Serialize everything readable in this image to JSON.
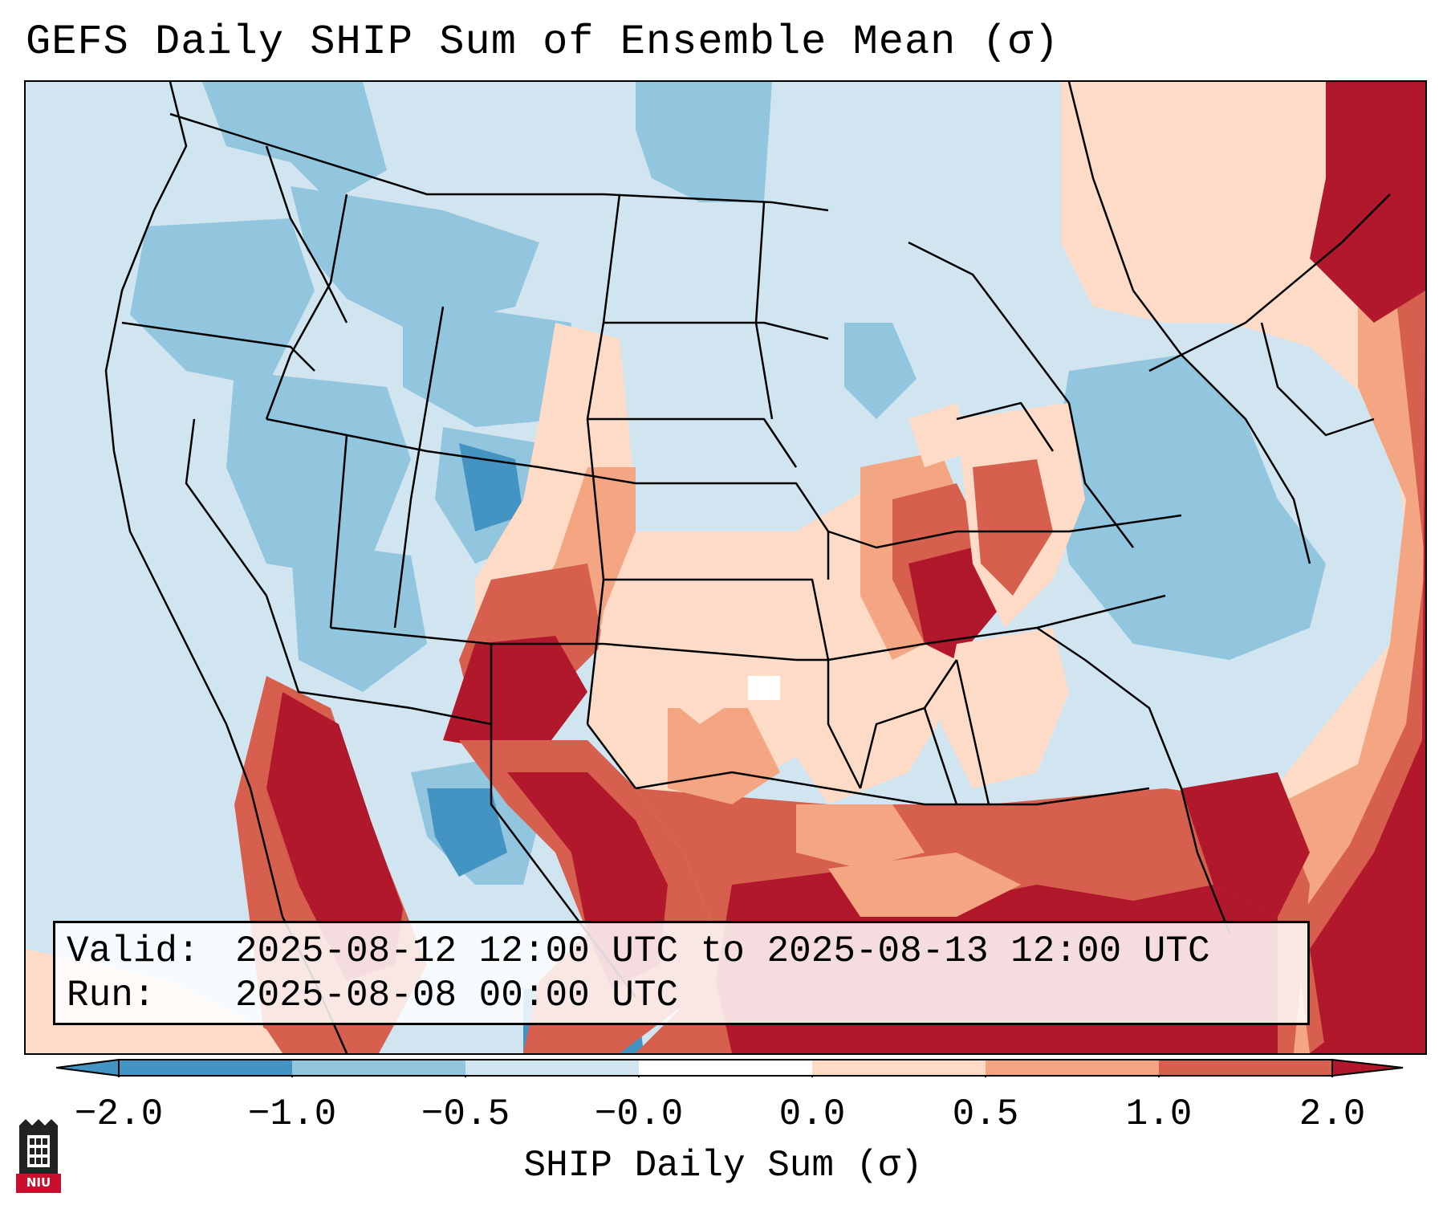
{
  "title": "GEFS Daily SHIP Sum of Ensemble Mean (σ)",
  "info": {
    "valid_label": "Valid:",
    "valid_value": "2025-08-12 12:00 UTC to 2025-08-13 12:00 UTC",
    "run_label": "Run:",
    "run_value": "2025-08-08 00:00 UTC"
  },
  "colorbar": {
    "label": "SHIP Daily Sum (σ)",
    "ticks": [
      "−2.0",
      "−1.0",
      "−0.5",
      "−0.0",
      "0.0",
      "0.5",
      "1.0",
      "2.0"
    ],
    "extend": "both",
    "colors": [
      "#4393c3",
      "#92c5de",
      "#d1e5f0",
      "#ffffff",
      "#fddbc7",
      "#f4a582",
      "#d6604d",
      "#b2182b"
    ]
  },
  "logo": {
    "text": "NIU",
    "icon": "university-tower-icon"
  },
  "map": {
    "region": "Continental United States and Mexico",
    "field": "SHIP daily sum anomaly (σ)",
    "pattern": [
      {
        "area": "Western and Northern United States",
        "category": "-1.0 to -0.5"
      },
      {
        "area": "Southern Plains and Mississippi Valley",
        "category": "0.5 to 2.0"
      },
      {
        "area": "Gulf of Mexico and Western Atlantic",
        "category": "> 2.0"
      },
      {
        "area": "Northeast and Mid-Atlantic coast",
        "category": "-1.0 to -0.0"
      }
    ]
  }
}
